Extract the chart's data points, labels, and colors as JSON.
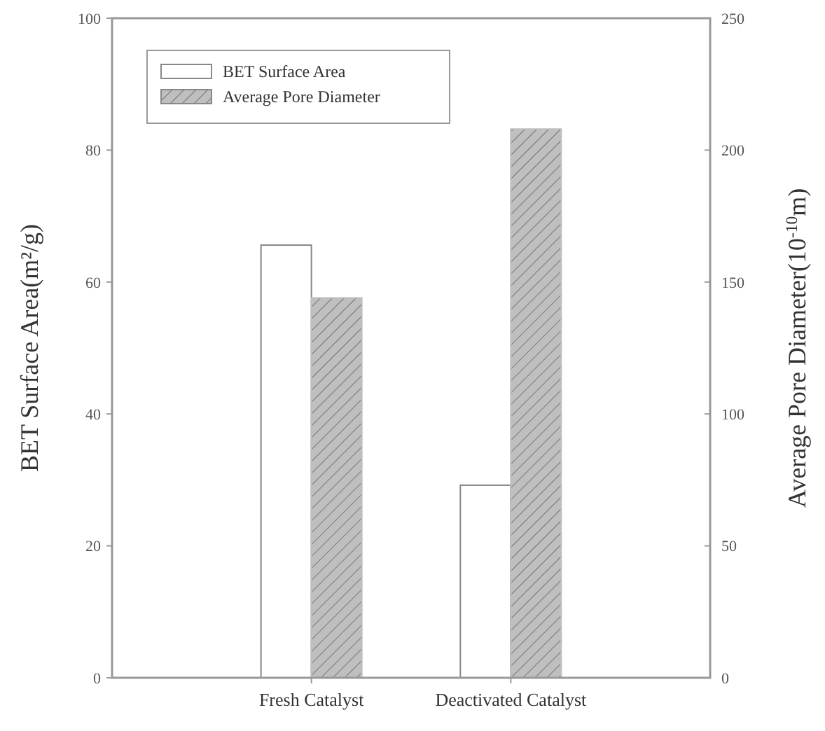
{
  "chart_data": {
    "type": "bar",
    "categories": [
      "Fresh Catalyst",
      "Deactivated Catalyst"
    ],
    "ylabel": "BET Surface Area(m²/g)",
    "y2label": "Average Pore Diameter(10$^{-10}$m)",
    "ylim": [
      0,
      100
    ],
    "yticks": [
      0,
      20,
      40,
      60,
      80,
      100
    ],
    "y2lim": [
      0,
      250
    ],
    "y2ticks": [
      0,
      50,
      100,
      150,
      200,
      250
    ],
    "legend": "top left",
    "grid": false,
    "series": [
      {
        "name": "BET Surface Area",
        "color": "#ffffff",
        "values": [
          65.6,
          29.2
        ]
      },
      {
        "name": "Average Pore Diameter",
        "color": "#bfbfbf",
        "axis": "y2",
        "values": [
          144,
          208
        ]
      }
    ]
  }
}
